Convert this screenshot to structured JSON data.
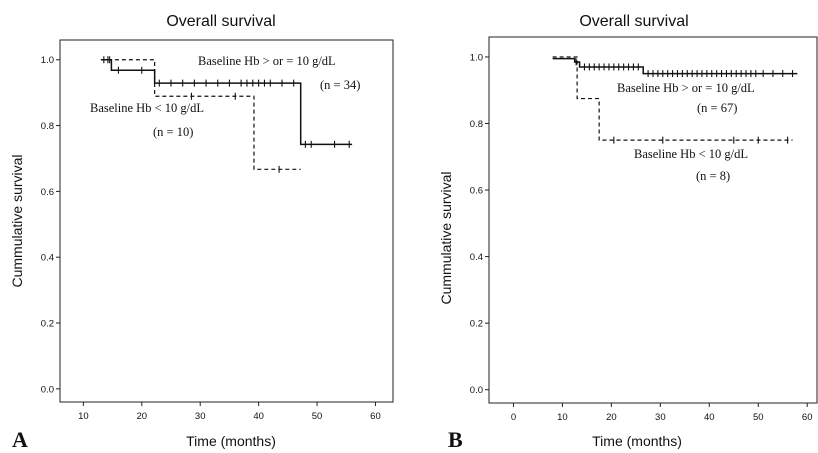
{
  "chart_data": [
    {
      "type": "line",
      "panel_label": "A",
      "title": "Overall survival",
      "xlabel": "Time (months)",
      "ylabel": "Cummulative survival",
      "xlim": [
        6,
        63
      ],
      "ylim": [
        -0.04,
        1.06
      ],
      "xticks": [
        10,
        20,
        30,
        40,
        50,
        60
      ],
      "yticks": [
        0.0,
        0.2,
        0.4,
        0.6,
        0.8,
        1.0
      ],
      "xtick_labels": [
        "10",
        "20",
        "30",
        "40",
        "50",
        "60"
      ],
      "ytick_labels": [
        "0.0",
        "0.2",
        "0.4",
        "0.6",
        "0.8",
        "1.0"
      ],
      "grid": false,
      "legend": "none",
      "series": [
        {
          "style": "solid",
          "annotation": [
            "Baseline Hb > or = 10 g/dL",
            "(n = 34)"
          ],
          "steps": [
            [
              13,
              1.0
            ],
            [
              14.8,
              0.968
            ],
            [
              22.2,
              0.929
            ],
            [
              47.2,
              0.743
            ],
            [
              56,
              0.743
            ]
          ],
          "censored": [
            [
              13.5,
              1.0
            ],
            [
              14.2,
              1.0
            ],
            [
              16,
              0.968
            ],
            [
              20,
              0.968
            ],
            [
              23,
              0.929
            ],
            [
              25,
              0.929
            ],
            [
              27,
              0.929
            ],
            [
              29,
              0.929
            ],
            [
              31,
              0.929
            ],
            [
              33,
              0.929
            ],
            [
              35,
              0.929
            ],
            [
              37,
              0.929
            ],
            [
              38,
              0.929
            ],
            [
              39,
              0.929
            ],
            [
              40,
              0.929
            ],
            [
              41,
              0.929
            ],
            [
              42,
              0.929
            ],
            [
              44,
              0.929
            ],
            [
              46,
              0.929
            ],
            [
              48,
              0.743
            ],
            [
              49,
              0.743
            ],
            [
              53,
              0.743
            ],
            [
              55.5,
              0.743
            ]
          ]
        },
        {
          "style": "dashed",
          "annotation": [
            "Baseline Hb < 10 g/dL",
            "(n = 10)"
          ],
          "steps": [
            [
              13,
              1.0
            ],
            [
              22.2,
              0.889
            ],
            [
              39.2,
              0.667
            ],
            [
              47.2,
              0.667
            ]
          ],
          "censored": [
            [
              14.5,
              1.0
            ],
            [
              28.5,
              0.889
            ],
            [
              36,
              0.889
            ],
            [
              43.5,
              0.667
            ]
          ]
        }
      ]
    },
    {
      "type": "line",
      "panel_label": "B",
      "title": "Overall survival",
      "xlabel": "Time (months)",
      "ylabel": "Cummulative survival",
      "xlim": [
        -5,
        62
      ],
      "ylim": [
        -0.04,
        1.06
      ],
      "xticks": [
        0,
        10,
        20,
        30,
        40,
        50,
        60
      ],
      "yticks": [
        0.0,
        0.2,
        0.4,
        0.6,
        0.8,
        1.0
      ],
      "xtick_labels": [
        "0",
        "10",
        "20",
        "30",
        "40",
        "50",
        "60"
      ],
      "ytick_labels": [
        "0.0",
        "0.2",
        "0.4",
        "0.6",
        "0.8",
        "1.0"
      ],
      "grid": false,
      "legend": "none",
      "series": [
        {
          "style": "solid",
          "annotation": [
            "Baseline Hb > or = 10 g/dL",
            "(n = 67)"
          ],
          "steps": [
            [
              8,
              0.995
            ],
            [
              12.5,
              0.985
            ],
            [
              13.5,
              0.97
            ],
            [
              26.5,
              0.95
            ],
            [
              58,
              0.95
            ]
          ],
          "censored": [
            [
              12.8,
              0.985
            ],
            [
              14.5,
              0.97
            ],
            [
              15.5,
              0.97
            ],
            [
              16.5,
              0.97
            ],
            [
              17.5,
              0.97
            ],
            [
              18.5,
              0.97
            ],
            [
              19.5,
              0.97
            ],
            [
              20.5,
              0.97
            ],
            [
              21.5,
              0.97
            ],
            [
              22.5,
              0.97
            ],
            [
              23.5,
              0.97
            ],
            [
              24.5,
              0.97
            ],
            [
              25.5,
              0.97
            ],
            [
              27.5,
              0.95
            ],
            [
              28.5,
              0.95
            ],
            [
              29.5,
              0.95
            ],
            [
              30.5,
              0.95
            ],
            [
              31.5,
              0.95
            ],
            [
              32.5,
              0.95
            ],
            [
              33.5,
              0.95
            ],
            [
              34.5,
              0.95
            ],
            [
              35.5,
              0.95
            ],
            [
              36.5,
              0.95
            ],
            [
              37.5,
              0.95
            ],
            [
              38.5,
              0.95
            ],
            [
              39.5,
              0.95
            ],
            [
              40.5,
              0.95
            ],
            [
              41.5,
              0.95
            ],
            [
              42.5,
              0.95
            ],
            [
              43.5,
              0.95
            ],
            [
              44.5,
              0.95
            ],
            [
              45.5,
              0.95
            ],
            [
              46.5,
              0.95
            ],
            [
              47.5,
              0.95
            ],
            [
              48.5,
              0.95
            ],
            [
              49.5,
              0.95
            ],
            [
              51,
              0.95
            ],
            [
              53,
              0.95
            ],
            [
              55,
              0.95
            ],
            [
              57,
              0.95
            ]
          ]
        },
        {
          "style": "dashed",
          "annotation": [
            "Baseline Hb < 10 g/dL",
            "(n = 8)"
          ],
          "steps": [
            [
              8,
              1.0
            ],
            [
              13,
              0.875
            ],
            [
              17.5,
              0.75
            ],
            [
              57,
              0.75
            ]
          ],
          "censored": [
            [
              20.5,
              0.75
            ],
            [
              30.5,
              0.75
            ],
            [
              45,
              0.75
            ],
            [
              50,
              0.75
            ],
            [
              56,
              0.75
            ]
          ]
        }
      ]
    }
  ]
}
